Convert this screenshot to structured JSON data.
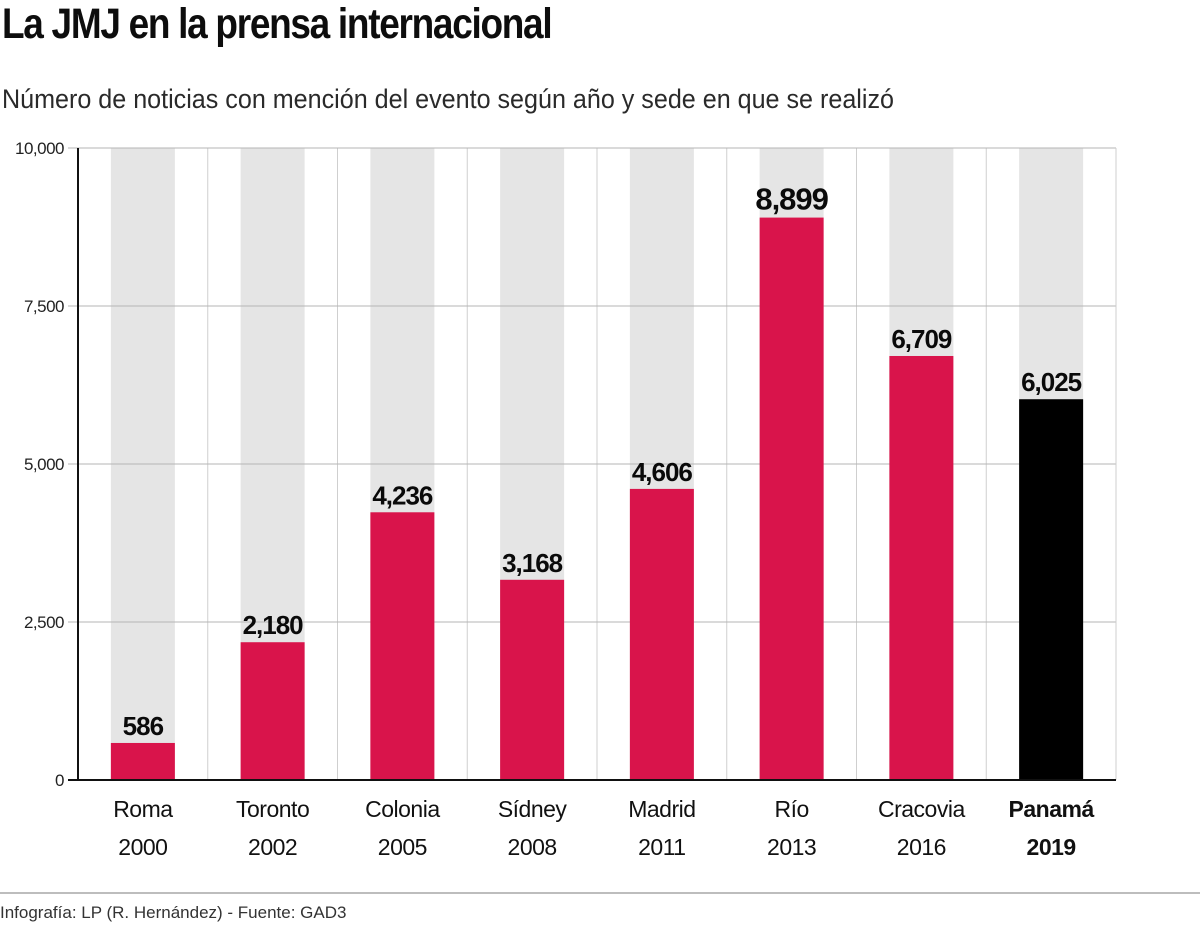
{
  "title": "La JMJ en la prensa internacional",
  "subtitle": "Número de noticias con mención del evento según año y sede en que se realizó",
  "credit": "Infografía: LP (R. Hernández) - Fuente: GAD3",
  "colors": {
    "bar": "#d9144b",
    "highlight": "#000000",
    "track": "#e5e5e5",
    "grid": "#b5b5b5"
  },
  "chart_data": {
    "type": "bar",
    "categories": [
      {
        "name": "Roma",
        "year": "2000",
        "label": "586",
        "highlight": false
      },
      {
        "name": "Toronto",
        "year": "2002",
        "label": "2,180",
        "highlight": false
      },
      {
        "name": "Colonia",
        "year": "2005",
        "label": "4,236",
        "highlight": false
      },
      {
        "name": "Sídney",
        "year": "2008",
        "label": "3,168",
        "highlight": false
      },
      {
        "name": "Madrid",
        "year": "2011",
        "label": "4,606",
        "highlight": false
      },
      {
        "name": "Río",
        "year": "2013",
        "label": "8,899",
        "highlight": false
      },
      {
        "name": "Cracovia",
        "year": "2016",
        "label": "6,709",
        "highlight": false
      },
      {
        "name": "Panamá",
        "year": "2019",
        "label": "6,025",
        "highlight": true
      }
    ],
    "values": [
      586,
      2180,
      4236,
      3168,
      4606,
      8899,
      6709,
      6025
    ],
    "ylim": [
      0,
      10000
    ],
    "yticks": [
      0,
      2500,
      5000,
      7500,
      10000
    ],
    "ytick_labels": [
      "0",
      "2,500",
      "5,000",
      "7,500",
      "10,000"
    ],
    "grid": true
  }
}
